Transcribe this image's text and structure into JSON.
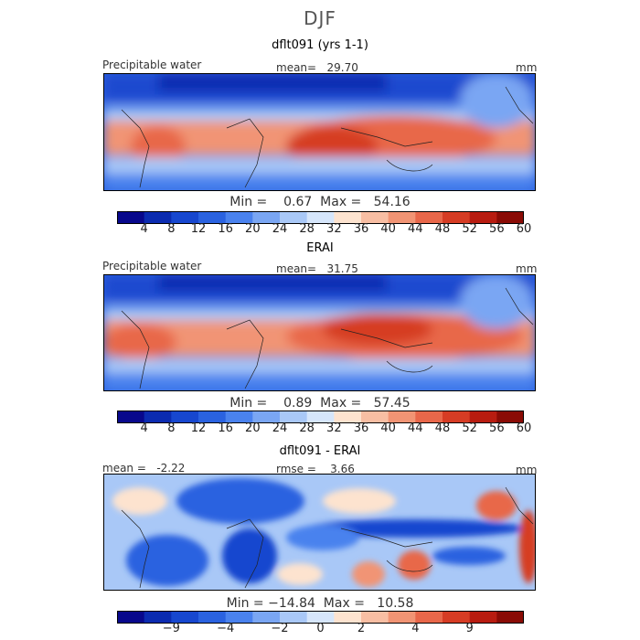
{
  "figure": {
    "title": "DJF",
    "panels": [
      {
        "id": "model",
        "title": "dflt091 (yrs 1-1)",
        "left_label": "Precipitable water",
        "center_label": "mean=   29.70",
        "units": "mm",
        "min_max": "Min =    0.67  Max =   54.16"
      },
      {
        "id": "obs",
        "title": "ERAI",
        "left_label": "Precipitable water",
        "center_label": "mean=   31.75",
        "units": "mm",
        "min_max": "Min =    0.89  Max =   57.45"
      },
      {
        "id": "diff",
        "title": "dflt091 - ERAI",
        "left_label": "mean =   -2.22",
        "center_label": "rmse =    3.66",
        "units": "mm",
        "min_max": "Min = −14.84  Max =   10.58"
      }
    ]
  },
  "colorbars": {
    "field": {
      "colors": [
        "#08088c",
        "#0b2bb0",
        "#1747cf",
        "#2a62e0",
        "#4a82ee",
        "#7aa6f3",
        "#a9c8f7",
        "#d6e6fb",
        "#fde3cf",
        "#f8bea3",
        "#f19474",
        "#e8674a",
        "#d63c24",
        "#b81c10",
        "#8a0b05"
      ],
      "labels": [
        "4",
        "8",
        "12",
        "16",
        "20",
        "24",
        "28",
        "32",
        "36",
        "40",
        "44",
        "48",
        "52",
        "56",
        "60"
      ]
    },
    "diff": {
      "colors": [
        "#08088c",
        "#0b2bb0",
        "#1747cf",
        "#2a62e0",
        "#4a82ee",
        "#7aa6f3",
        "#a9c8f7",
        "#d6e6fb",
        "#fde3cf",
        "#f8bea3",
        "#f19474",
        "#e8674a",
        "#d63c24",
        "#b81c10",
        "#8a0b05"
      ],
      "labels": [
        "−9",
        "−4",
        "−2",
        "0",
        "2",
        "4",
        "9"
      ]
    }
  }
}
